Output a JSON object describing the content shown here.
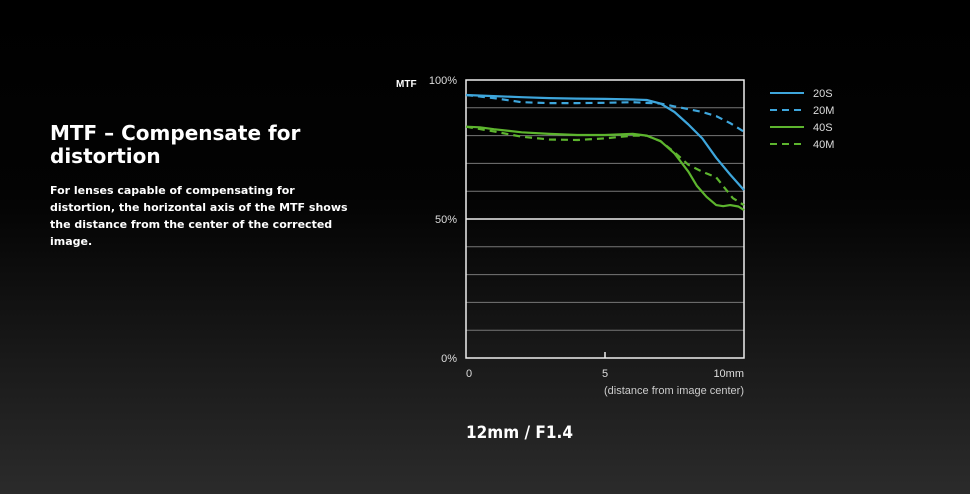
{
  "heading": "MTF – Compensate for distortion",
  "description": "For lenses capable of compensating for distortion, the horizontal axis of the MTF shows the distance from the center of the corrected image.",
  "caption": "12mm / F1.4",
  "chart_data": {
    "type": "line",
    "ylabel": "MTF",
    "xlabel": "(distance from image center)",
    "xlim": [
      0,
      10
    ],
    "ylim": [
      0,
      100
    ],
    "x_ticks": [
      {
        "value": 0,
        "label": "0"
      },
      {
        "value": 5,
        "label": "5"
      },
      {
        "value": 10,
        "label": "10mm"
      }
    ],
    "y_ticks": [
      {
        "value": 100,
        "label": "100%"
      },
      {
        "value": 50,
        "label": "50%"
      },
      {
        "value": 0,
        "label": "0%"
      }
    ],
    "grid": true,
    "legend": "top-right",
    "series": [
      {
        "name": "20S",
        "color": "#3ea6dc",
        "dashed": false,
        "x": [
          0,
          1,
          2,
          3,
          4,
          5,
          6,
          6.5,
          7,
          7.5,
          8,
          8.5,
          9,
          9.5,
          10
        ],
        "y": [
          94.6,
          94.2,
          93.8,
          93.5,
          93.3,
          93.2,
          93,
          92.8,
          91.5,
          88.5,
          84,
          79,
          72,
          66,
          60.4
        ]
      },
      {
        "name": "20M",
        "color": "#3ea6dc",
        "dashed": true,
        "x": [
          0,
          1,
          2,
          3,
          4,
          5,
          6,
          7,
          7.5,
          8,
          8.5,
          9,
          9.5,
          10
        ],
        "y": [
          94.6,
          93.5,
          92,
          91.7,
          91.7,
          91.8,
          92,
          91.5,
          90.5,
          89.5,
          88.5,
          87,
          84.5,
          81.4
        ]
      },
      {
        "name": "40S",
        "color": "#5db52e",
        "dashed": false,
        "x": [
          0,
          0.5,
          1,
          2,
          3,
          4,
          5,
          6,
          6.5,
          7,
          7.5,
          8,
          8.3,
          8.65,
          9,
          9.25,
          9.5,
          9.8,
          10
        ],
        "y": [
          83.2,
          83,
          82.3,
          81.2,
          80.6,
          80.2,
          80.2,
          80.6,
          80,
          78,
          73.6,
          67,
          62,
          58,
          55,
          54.6,
          55,
          54.5,
          53.2
        ]
      },
      {
        "name": "40M",
        "color": "#5db52e",
        "dashed": true,
        "x": [
          0,
          1,
          2,
          3,
          4,
          5,
          6,
          6.5,
          7,
          7.5,
          8,
          8.5,
          9,
          9.6,
          10
        ],
        "y": [
          83.2,
          81.5,
          79.6,
          78.6,
          78.4,
          79,
          80,
          80,
          78,
          74,
          69.5,
          67,
          65,
          57.5,
          55
        ]
      }
    ]
  }
}
